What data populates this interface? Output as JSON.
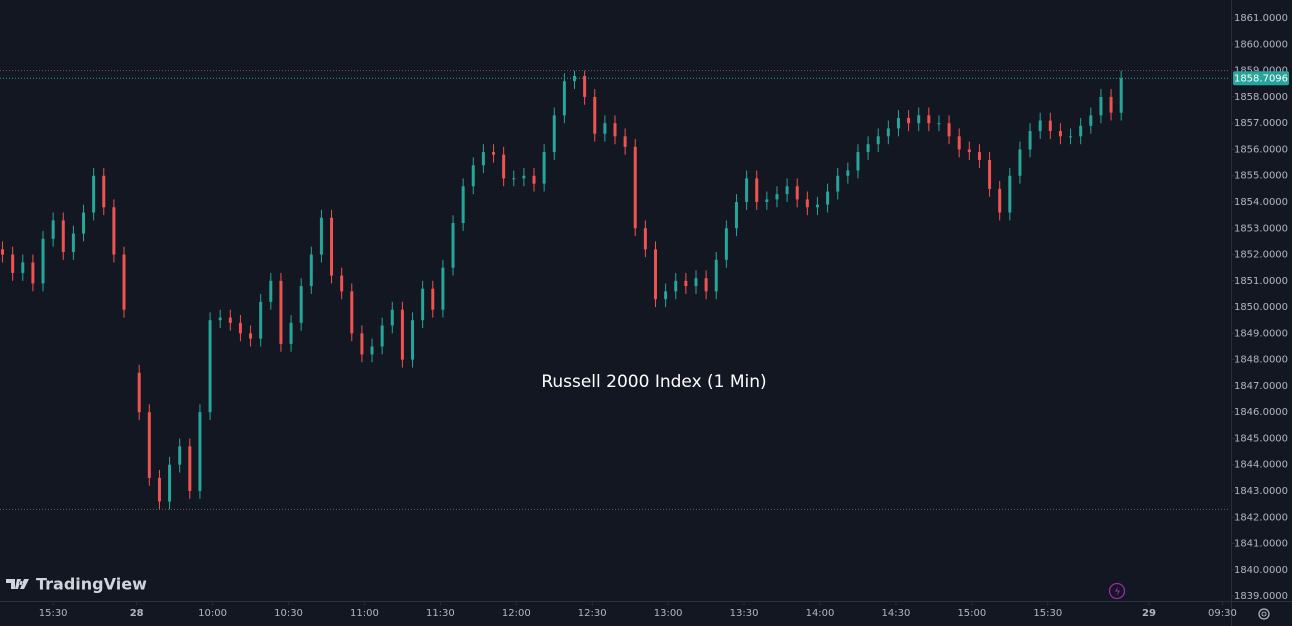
{
  "chart_data": {
    "type": "candlestick",
    "title": "Russell 2000 Index (1 Min)",
    "watermark": "TradingView",
    "up_color": "#26a69a",
    "down_color": "#ef5350",
    "grid": false,
    "x": [
      0,
      4,
      8,
      12,
      16,
      20,
      24,
      28,
      32,
      36,
      40,
      44,
      48,
      54,
      58,
      62,
      66,
      70,
      74,
      78,
      82,
      86,
      90,
      94,
      98,
      102,
      106,
      110,
      114,
      118,
      122,
      126,
      130,
      134,
      138,
      142,
      146,
      150,
      154,
      158,
      162,
      166,
      170,
      174,
      178,
      182,
      186,
      190,
      194,
      198,
      202,
      206,
      210,
      214,
      218,
      222,
      226,
      230,
      234,
      238,
      242,
      246,
      250,
      254,
      258,
      262,
      266,
      270,
      274,
      278,
      282,
      286,
      290,
      294,
      298,
      302,
      306,
      310,
      314,
      318,
      322,
      326,
      330,
      334,
      338,
      342,
      346,
      350,
      354,
      358,
      362,
      366,
      370,
      374,
      378,
      382,
      386,
      390,
      394,
      398,
      402,
      406,
      410,
      414,
      418,
      422,
      426,
      430,
      434,
      438,
      442
    ],
    "open": [
      1852.2,
      1852.0,
      1851.3,
      1851.7,
      1850.9,
      1852.6,
      1853.3,
      1852.1,
      1852.8,
      1853.6,
      1855.0,
      1853.8,
      1852.0,
      1847.5,
      1846.0,
      1843.5,
      1842.6,
      1844.0,
      1844.7,
      1843.0,
      1846.0,
      1849.5,
      1849.6,
      1849.4,
      1849.0,
      1848.8,
      1850.2,
      1851.0,
      1848.6,
      1849.4,
      1850.8,
      1852.0,
      1853.4,
      1851.2,
      1850.6,
      1849.0,
      1848.2,
      1848.5,
      1849.3,
      1849.9,
      1848.0,
      1849.5,
      1850.7,
      1849.9,
      1851.5,
      1853.2,
      1854.6,
      1855.4,
      1855.9,
      1855.8,
      1854.9,
      1854.9,
      1855.0,
      1854.7,
      1855.9,
      1857.3,
      1858.6,
      1858.8,
      1858.0,
      1856.6,
      1857.0,
      1856.5,
      1856.1,
      1853.0,
      1852.2,
      1850.3,
      1850.6,
      1851.0,
      1850.8,
      1851.1,
      1850.6,
      1851.8,
      1853.0,
      1854.0,
      1854.9,
      1854.0,
      1854.1,
      1854.3,
      1854.6,
      1854.1,
      1853.8,
      1853.9,
      1854.4,
      1855.0,
      1855.2,
      1855.9,
      1856.2,
      1856.5,
      1856.8,
      1857.2,
      1857.0,
      1857.3,
      1857.0,
      1857.0,
      1856.5,
      1856.0,
      1855.9,
      1855.6,
      1854.5,
      1853.6,
      1855.0,
      1856.0,
      1856.7,
      1857.1,
      1856.7,
      1856.5,
      1856.5,
      1856.9,
      1857.3,
      1858.0,
      1857.4
    ],
    "high": [
      1852.5,
      1852.3,
      1852.0,
      1852.0,
      1852.9,
      1853.6,
      1853.6,
      1853.1,
      1853.9,
      1855.3,
      1855.3,
      1854.1,
      1852.3,
      1847.8,
      1846.3,
      1843.8,
      1844.3,
      1845.0,
      1845.0,
      1846.3,
      1849.8,
      1849.9,
      1849.9,
      1849.7,
      1849.3,
      1850.5,
      1851.3,
      1851.3,
      1849.7,
      1851.1,
      1852.3,
      1853.7,
      1853.7,
      1851.5,
      1850.9,
      1849.3,
      1848.8,
      1849.6,
      1850.2,
      1850.2,
      1849.8,
      1851.0,
      1851.0,
      1851.8,
      1853.5,
      1854.9,
      1855.7,
      1856.2,
      1856.2,
      1856.1,
      1855.2,
      1855.3,
      1855.3,
      1856.2,
      1857.6,
      1858.9,
      1859.0,
      1859.0,
      1858.3,
      1857.3,
      1857.3,
      1856.8,
      1856.4,
      1853.3,
      1852.5,
      1850.9,
      1851.3,
      1851.3,
      1851.4,
      1851.4,
      1852.1,
      1853.3,
      1854.3,
      1855.2,
      1855.2,
      1854.4,
      1854.6,
      1854.9,
      1854.9,
      1854.4,
      1854.2,
      1854.7,
      1855.3,
      1855.5,
      1856.2,
      1856.5,
      1856.8,
      1857.1,
      1857.5,
      1857.5,
      1857.6,
      1857.6,
      1857.3,
      1857.3,
      1856.8,
      1856.3,
      1856.2,
      1855.9,
      1854.8,
      1855.3,
      1856.3,
      1857.0,
      1857.4,
      1857.4,
      1857.0,
      1856.8,
      1857.2,
      1857.6,
      1858.3,
      1858.3,
      1859.0
    ],
    "low": [
      1851.7,
      1851.0,
      1851.0,
      1850.6,
      1850.6,
      1852.3,
      1851.8,
      1851.8,
      1852.5,
      1853.3,
      1853.5,
      1851.7,
      1849.6,
      1845.7,
      1843.2,
      1842.3,
      1842.3,
      1843.7,
      1842.7,
      1842.7,
      1845.7,
      1849.2,
      1849.1,
      1848.7,
      1848.5,
      1848.5,
      1849.9,
      1848.3,
      1848.3,
      1849.1,
      1850.5,
      1851.7,
      1850.9,
      1850.3,
      1848.7,
      1847.9,
      1847.9,
      1848.2,
      1849.0,
      1847.7,
      1847.7,
      1849.2,
      1849.6,
      1849.6,
      1851.2,
      1852.9,
      1854.3,
      1855.1,
      1855.5,
      1854.6,
      1854.6,
      1854.6,
      1854.4,
      1854.4,
      1855.6,
      1857.0,
      1858.3,
      1857.7,
      1856.3,
      1856.3,
      1856.2,
      1855.8,
      1852.7,
      1851.9,
      1850.0,
      1850.0,
      1850.3,
      1850.5,
      1850.5,
      1850.3,
      1850.3,
      1851.5,
      1852.7,
      1853.7,
      1853.7,
      1853.7,
      1853.8,
      1854.0,
      1853.8,
      1853.5,
      1853.5,
      1853.6,
      1854.1,
      1854.7,
      1854.9,
      1855.6,
      1855.9,
      1856.2,
      1856.5,
      1856.7,
      1856.7,
      1856.7,
      1856.7,
      1856.2,
      1855.7,
      1855.6,
      1855.3,
      1854.2,
      1853.3,
      1853.3,
      1854.7,
      1855.7,
      1856.4,
      1856.4,
      1856.2,
      1856.2,
      1856.2,
      1856.6,
      1857.0,
      1857.1,
      1857.1
    ],
    "close": [
      1852.0,
      1851.3,
      1851.7,
      1850.9,
      1852.6,
      1853.3,
      1852.1,
      1852.8,
      1853.6,
      1855.0,
      1853.8,
      1852.0,
      1849.9,
      1846.0,
      1843.5,
      1842.6,
      1844.0,
      1844.7,
      1843.0,
      1846.0,
      1849.5,
      1849.6,
      1849.4,
      1849.0,
      1848.8,
      1850.2,
      1851.0,
      1848.6,
      1849.4,
      1850.8,
      1852.0,
      1853.4,
      1851.2,
      1850.6,
      1849.0,
      1848.2,
      1848.5,
      1849.3,
      1849.9,
      1848.0,
      1849.5,
      1850.7,
      1849.9,
      1851.5,
      1853.2,
      1854.6,
      1855.4,
      1855.9,
      1855.8,
      1854.9,
      1854.9,
      1855.0,
      1854.7,
      1855.9,
      1857.3,
      1858.6,
      1858.8,
      1858.0,
      1856.6,
      1857.0,
      1856.5,
      1856.1,
      1853.0,
      1852.2,
      1850.3,
      1850.6,
      1851.0,
      1850.8,
      1851.1,
      1850.6,
      1851.8,
      1853.0,
      1854.0,
      1854.9,
      1854.0,
      1854.1,
      1854.3,
      1854.6,
      1854.1,
      1853.8,
      1853.9,
      1854.4,
      1855.0,
      1855.2,
      1855.9,
      1856.2,
      1856.5,
      1856.8,
      1857.2,
      1857.0,
      1857.3,
      1857.0,
      1857.0,
      1856.5,
      1856.0,
      1855.9,
      1855.6,
      1854.5,
      1853.6,
      1855.0,
      1856.0,
      1856.7,
      1857.1,
      1856.7,
      1856.5,
      1856.5,
      1856.9,
      1857.3,
      1858.0,
      1857.4,
      1858.7096
    ],
    "last_price": 1858.7096,
    "price_lines": [
      1859.0,
      1842.3
    ],
    "xlim": [
      -1,
      485
    ],
    "xticks": [
      {
        "value": 20,
        "label": "15:30"
      },
      {
        "value": 53,
        "label": "28"
      },
      {
        "value": 83,
        "label": "10:00"
      },
      {
        "value": 113,
        "label": "10:30"
      },
      {
        "value": 143,
        "label": "11:00"
      },
      {
        "value": 173,
        "label": "11:30"
      },
      {
        "value": 203,
        "label": "12:00"
      },
      {
        "value": 233,
        "label": "12:30"
      },
      {
        "value": 263,
        "label": "13:00"
      },
      {
        "value": 293,
        "label": "13:30"
      },
      {
        "value": 323,
        "label": "14:00"
      },
      {
        "value": 353,
        "label": "14:30"
      },
      {
        "value": 383,
        "label": "15:00"
      },
      {
        "value": 413,
        "label": "15:30"
      },
      {
        "value": 453,
        "label": "29"
      },
      {
        "value": 482,
        "label": "09:30"
      }
    ],
    "ylim": [
      1838.85,
      1861.69
    ],
    "yticks": [
      {
        "value": 1839,
        "label": "1839.0000"
      },
      {
        "value": 1840,
        "label": "1840.0000"
      },
      {
        "value": 1841,
        "label": "1841.0000"
      },
      {
        "value": 1842,
        "label": "1842.0000"
      },
      {
        "value": 1843,
        "label": "1843.0000"
      },
      {
        "value": 1844,
        "label": "1844.0000"
      },
      {
        "value": 1845,
        "label": "1845.0000"
      },
      {
        "value": 1846,
        "label": "1846.0000"
      },
      {
        "value": 1847,
        "label": "1847.0000"
      },
      {
        "value": 1848,
        "label": "1848.0000"
      },
      {
        "value": 1849,
        "label": "1849.0000"
      },
      {
        "value": 1850,
        "label": "1850.0000"
      },
      {
        "value": 1851,
        "label": "1851.0000"
      },
      {
        "value": 1852,
        "label": "1852.0000"
      },
      {
        "value": 1853,
        "label": "1853.0000"
      },
      {
        "value": 1854,
        "label": "1854.0000"
      },
      {
        "value": 1855,
        "label": "1855.0000"
      },
      {
        "value": 1856,
        "label": "1856.0000"
      },
      {
        "value": 1857,
        "label": "1857.0000"
      },
      {
        "value": 1858,
        "label": "1858.0000"
      },
      {
        "value": 1859,
        "label": "1859.0000"
      },
      {
        "value": 1860,
        "label": "1860.0000"
      },
      {
        "value": 1861,
        "label": "1861.0000"
      }
    ]
  }
}
